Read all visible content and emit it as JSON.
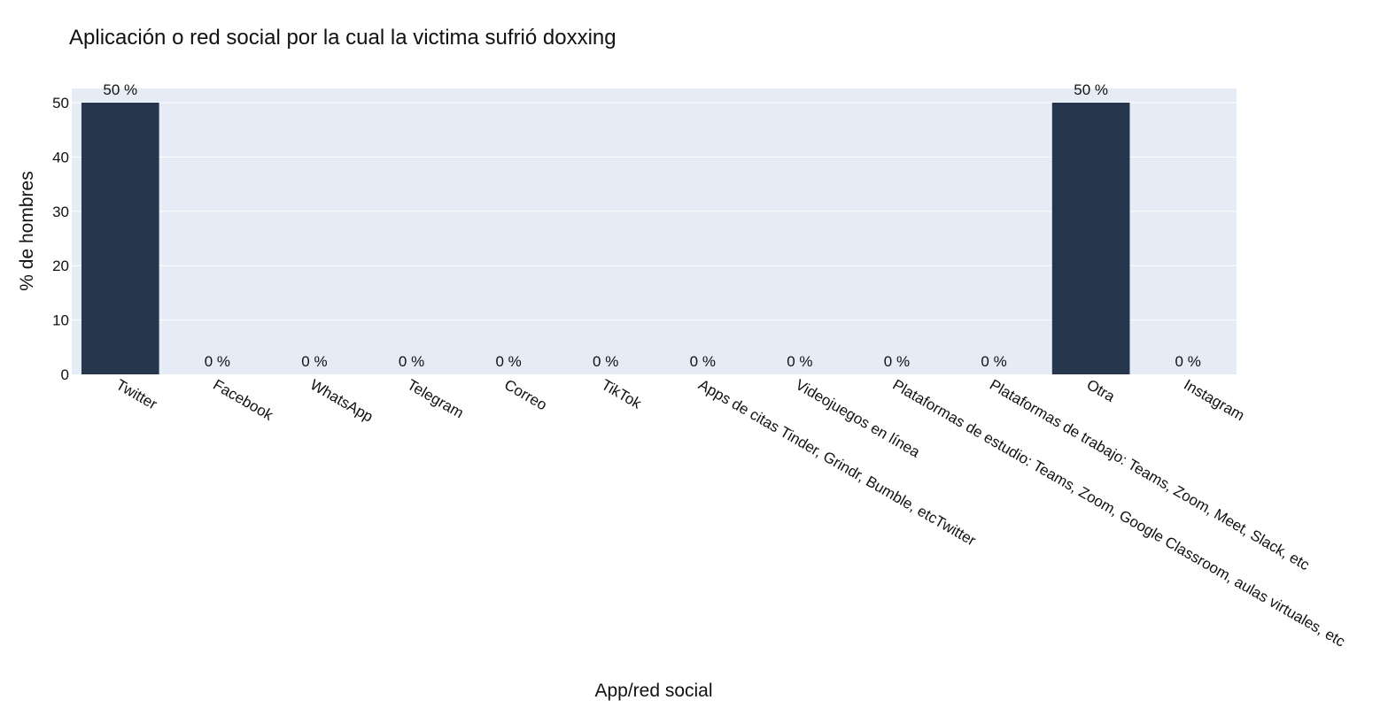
{
  "chart_data": {
    "type": "bar",
    "title": "Aplicación o red social por la cual la victima sufrió doxxing",
    "xlabel": "App/red social",
    "ylabel": "% de hombres",
    "categories": [
      "Twitter",
      "Facebook",
      "WhatsApp",
      "Telegram",
      "Correo",
      "TikTok",
      "Apps de citas Tinder, Grindr, Bumble, etcTwitter",
      "Videojuegos en línea",
      "Plataformas de estudio: Teams, Zoom, Google Classroom, aulas virtuales, etc",
      "Plataformas de trabajo: Teams, Zoom, Meet, Slack, etc",
      "Otra",
      "Instagram"
    ],
    "values": [
      50,
      0,
      0,
      0,
      0,
      0,
      0,
      0,
      0,
      0,
      50,
      0
    ],
    "data_labels": [
      "50 %",
      "0 %",
      "0 %",
      "0 %",
      "0 %",
      "0 %",
      "0 %",
      "0 %",
      "0 %",
      "0 %",
      "50 %",
      "0 %"
    ],
    "ylim": [
      0,
      50
    ],
    "yticks": [
      0,
      10,
      20,
      30,
      40,
      50
    ],
    "grid": true,
    "colors": {
      "bar": "#26364d",
      "plot_bg": "#e5ecf6",
      "grid": "#ffffff",
      "text": "#111111"
    }
  }
}
